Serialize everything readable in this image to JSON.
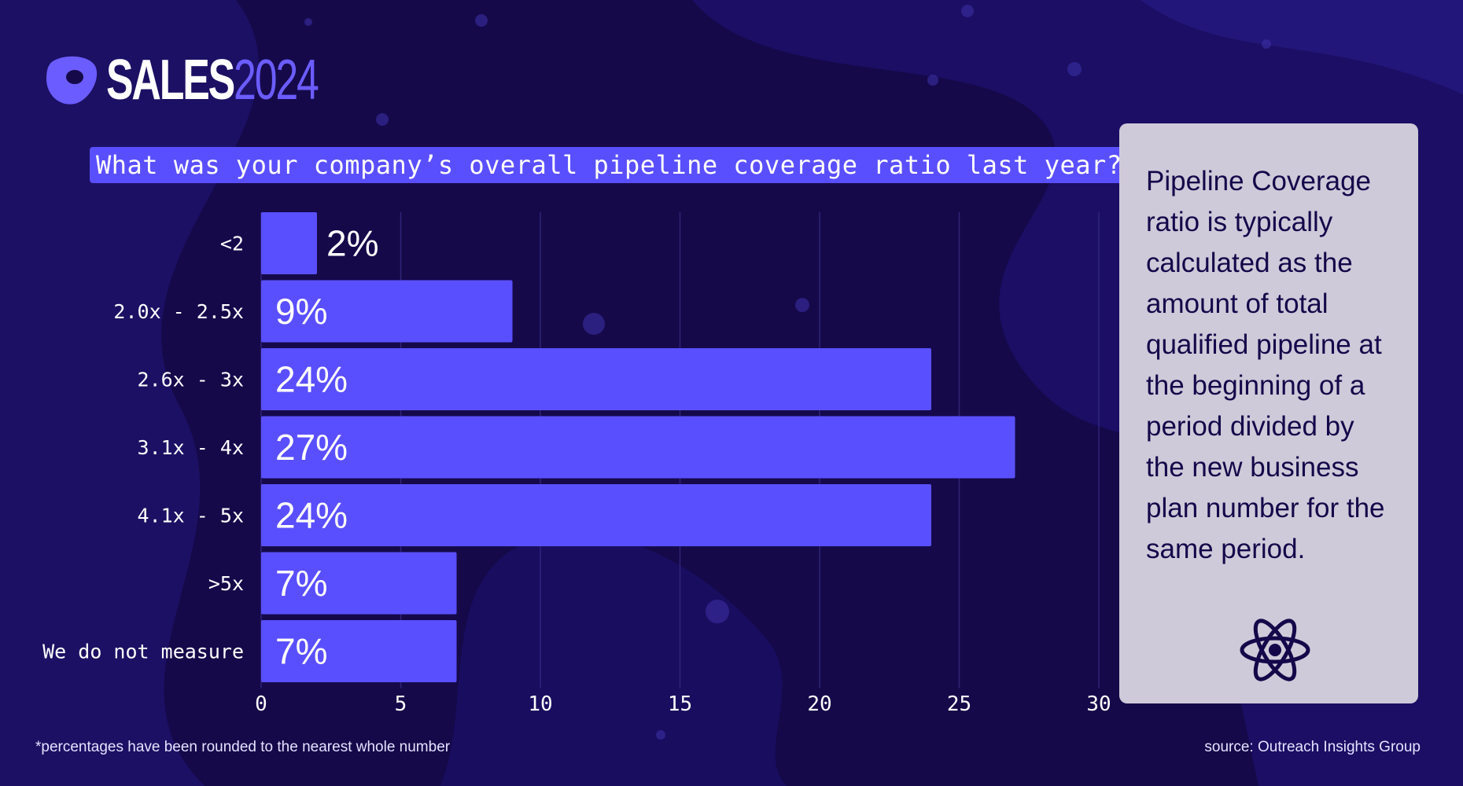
{
  "brand": {
    "word": "SALES",
    "year": "2024"
  },
  "question": "What was your company’s overall pipeline coverage ratio last year?",
  "note": {
    "text": "Pipeline Coverage ratio is typically calculated as the amount of total qualified pipeline at the beginning of a period divided by the new business plan number for the same period.",
    "icon": "atom-icon"
  },
  "footnote": "*percentages have been rounded to the nearest whole number",
  "source": "source: Outreach Insights Group",
  "colors": {
    "background": "#15094a",
    "bar": "#5a4fff",
    "note_bg": "#cfcad9",
    "text": "#ffffff"
  },
  "chart_data": {
    "type": "bar",
    "orientation": "horizontal",
    "categories": [
      "<2",
      "2.0x - 2.5x",
      "2.6x - 3x",
      "3.1x - 4x",
      "4.1x - 5x",
      ">5x",
      "We do not measure"
    ],
    "values": [
      2,
      9,
      24,
      27,
      24,
      7,
      7
    ],
    "data_labels": [
      "2%",
      "9%",
      "24%",
      "27%",
      "24%",
      "7%",
      "7%"
    ],
    "xlim": [
      0,
      30
    ],
    "xticks": [
      0,
      5,
      10,
      15,
      20,
      25,
      30
    ],
    "grid": true,
    "title": "",
    "xlabel": "",
    "ylabel": ""
  }
}
